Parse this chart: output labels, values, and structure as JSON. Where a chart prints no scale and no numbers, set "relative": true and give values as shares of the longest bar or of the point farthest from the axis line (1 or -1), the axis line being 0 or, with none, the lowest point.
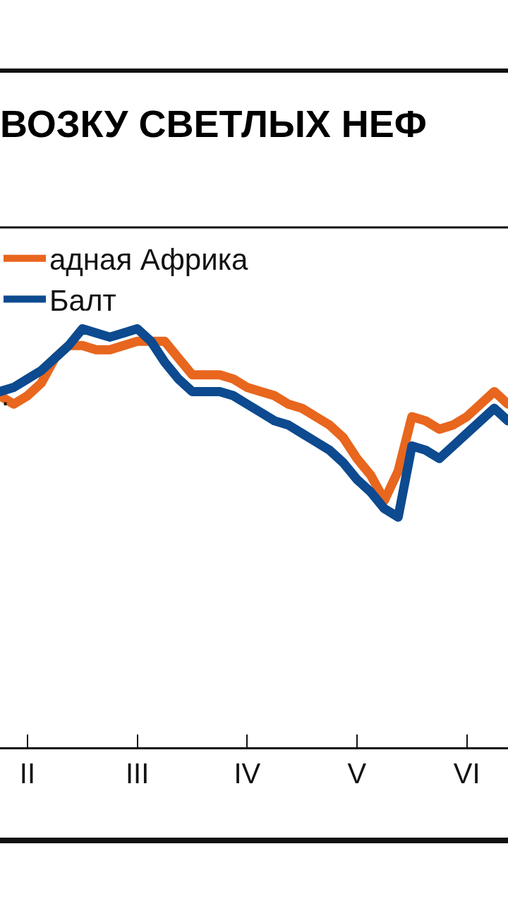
{
  "chart_data": {
    "type": "line",
    "title": "ВОЗКУ СВЕТЛЫХ НЕФ",
    "subtitle": ".",
    "relative": true,
    "categories": [
      null,
      null,
      "II",
      null,
      null,
      null,
      null,
      null,
      null,
      null,
      "III",
      null,
      null,
      null,
      null,
      null,
      null,
      null,
      "IV",
      null,
      null,
      null,
      null,
      null,
      null,
      null,
      "V",
      null,
      null,
      null,
      null,
      null,
      null,
      null,
      "VI",
      null,
      null,
      null
    ],
    "series": [
      {
        "name": "адная Африка",
        "color": "#e8661e",
        "values": [
          0.84,
          0.82,
          0.84,
          0.87,
          0.93,
          0.96,
          0.96,
          0.95,
          0.95,
          0.96,
          0.97,
          0.97,
          0.97,
          0.93,
          0.89,
          0.89,
          0.89,
          0.88,
          0.86,
          0.85,
          0.84,
          0.82,
          0.81,
          0.79,
          0.77,
          0.74,
          0.69,
          0.65,
          0.59,
          0.66,
          0.79,
          0.78,
          0.76,
          0.77,
          0.79,
          0.82,
          0.85,
          0.82
        ]
      },
      {
        "name": "Балт",
        "color": "#0d4a8f",
        "values": [
          0.85,
          0.86,
          0.88,
          0.9,
          0.93,
          0.96,
          1.0,
          0.99,
          0.98,
          0.99,
          1.0,
          0.97,
          0.92,
          0.88,
          0.85,
          0.85,
          0.85,
          0.84,
          0.82,
          0.8,
          0.78,
          0.77,
          0.75,
          0.73,
          0.71,
          0.68,
          0.64,
          0.61,
          0.57,
          0.55,
          0.72,
          0.71,
          0.69,
          0.72,
          0.75,
          0.78,
          0.81,
          0.78
        ]
      }
    ],
    "legend": "top",
    "marker": "none",
    "line_style": "solid"
  }
}
